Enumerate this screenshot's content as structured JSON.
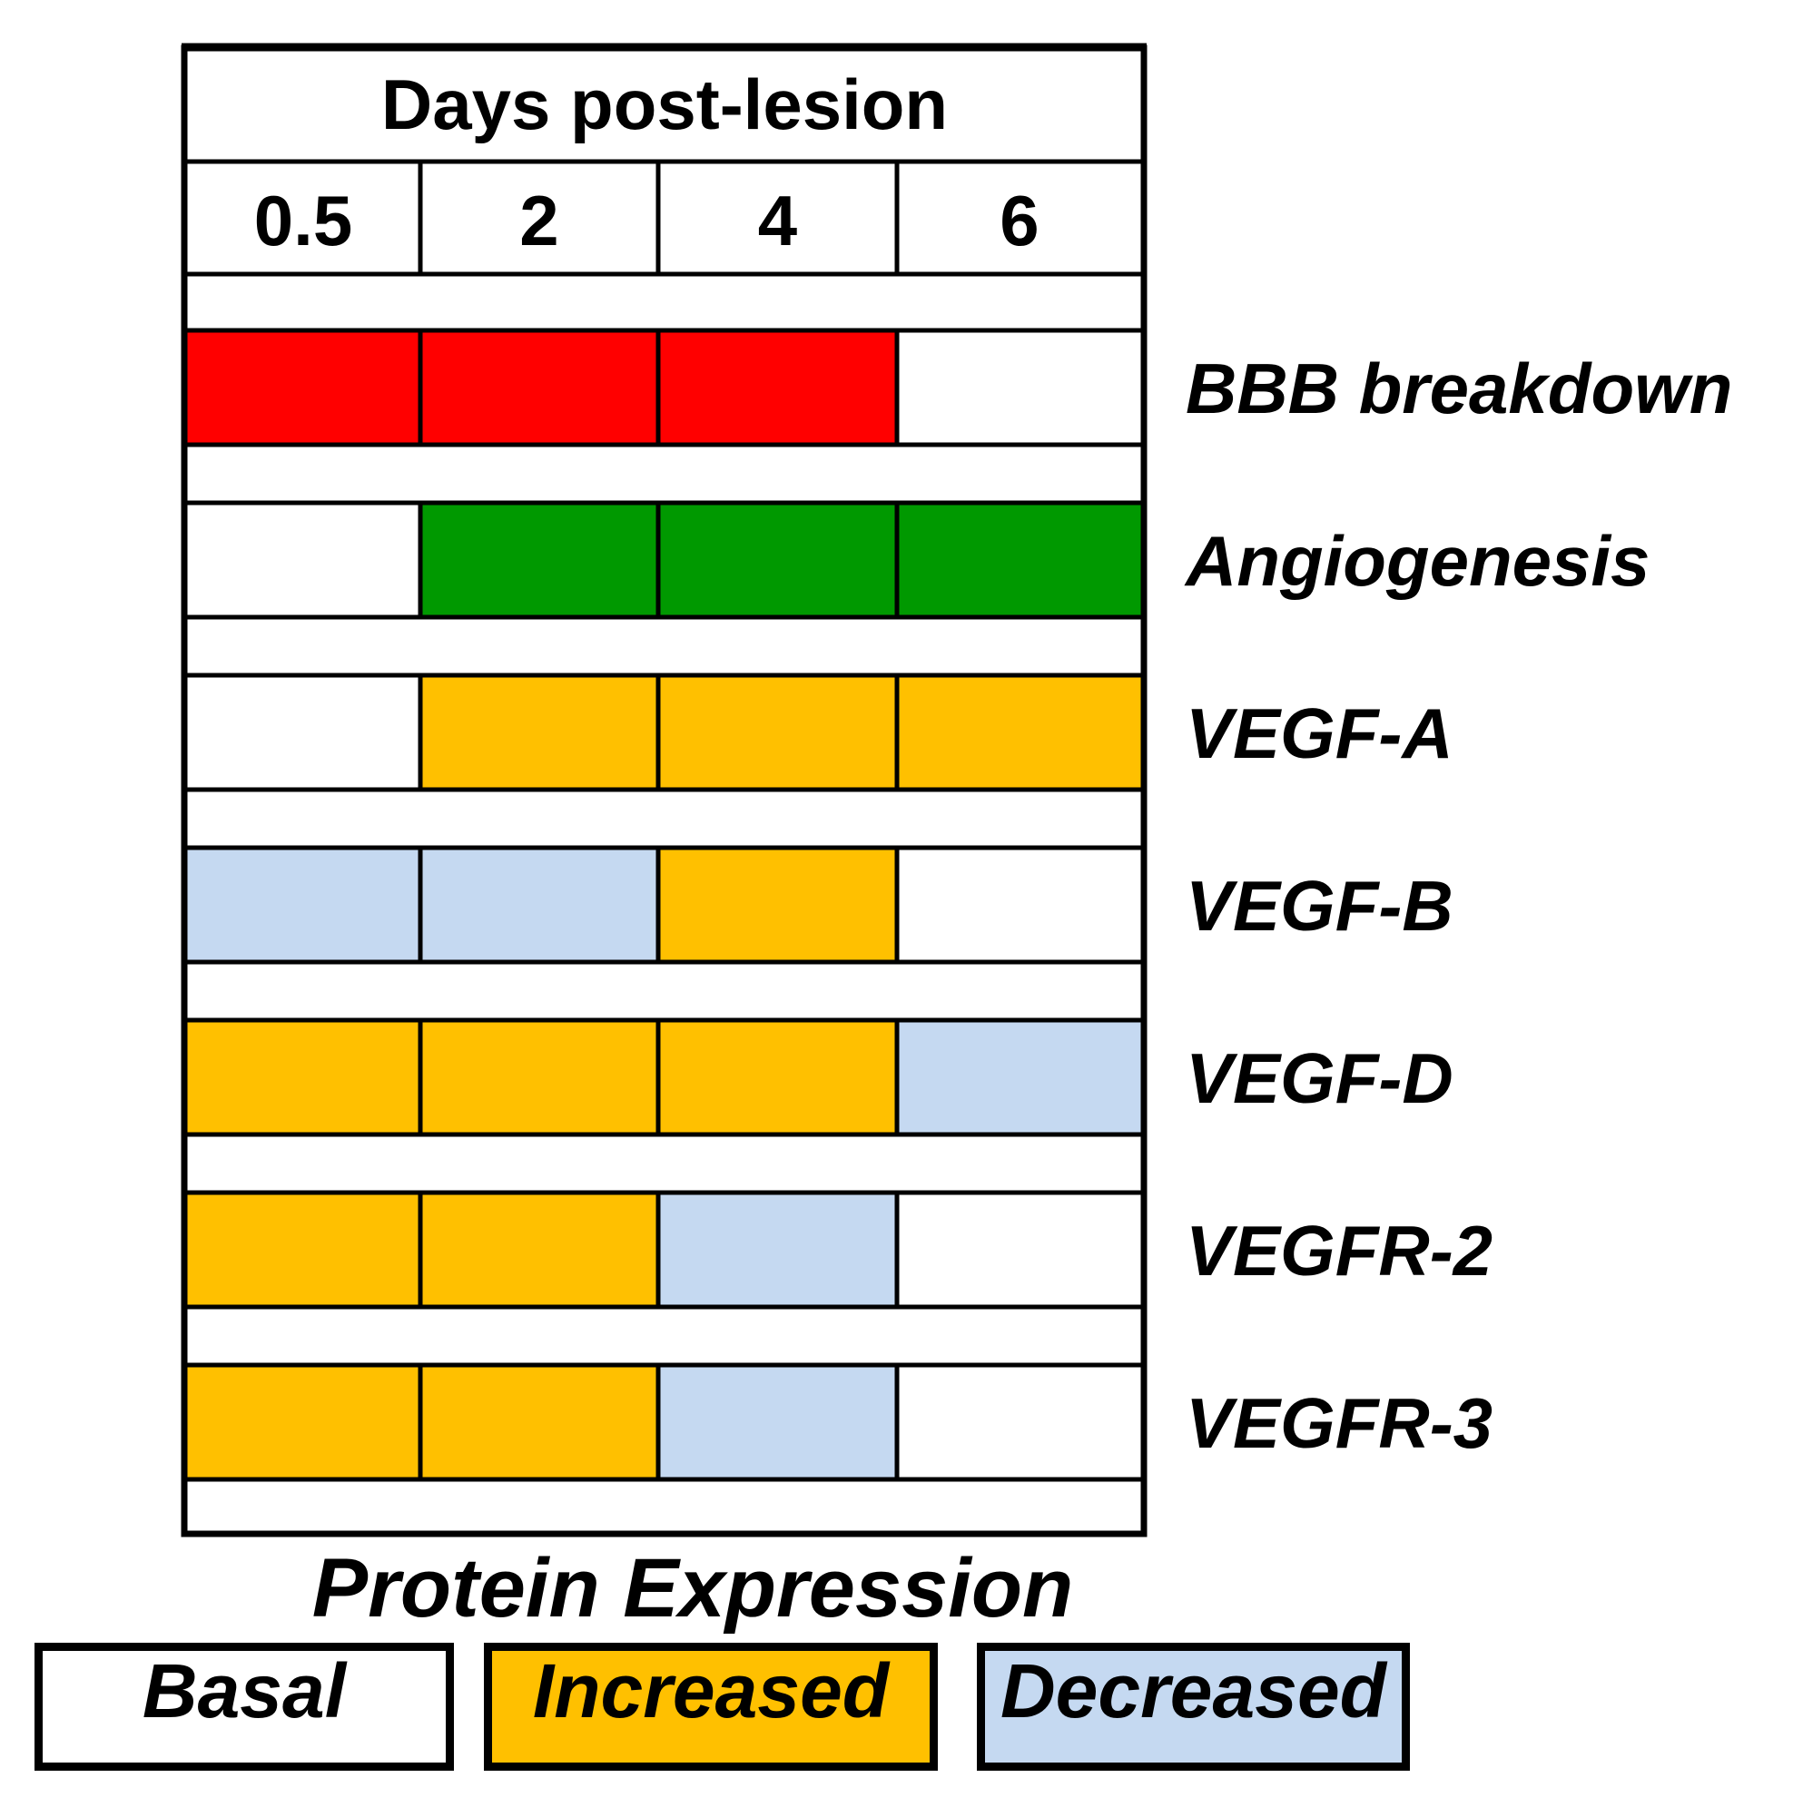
{
  "header": "Days post-lesion",
  "days": [
    "0.5",
    "2",
    "4",
    "6"
  ],
  "rows": [
    {
      "label": "BBB breakdown",
      "cells": [
        "bbb",
        "bbb",
        "bbb",
        "basal"
      ]
    },
    {
      "label": "Angiogenesis",
      "cells": [
        "basal",
        "angio",
        "angio",
        "angio"
      ]
    },
    {
      "label": "VEGF-A",
      "cells": [
        "basal",
        "increased",
        "increased",
        "increased"
      ]
    },
    {
      "label": "VEGF-B",
      "cells": [
        "decreased",
        "decreased",
        "increased",
        "basal"
      ]
    },
    {
      "label": "VEGF-D",
      "cells": [
        "increased",
        "increased",
        "increased",
        "decreased"
      ]
    },
    {
      "label": "VEGFR-2",
      "cells": [
        "increased",
        "increased",
        "decreased",
        "basal"
      ]
    },
    {
      "label": "VEGFR-3",
      "cells": [
        "increased",
        "increased",
        "decreased",
        "basal"
      ]
    }
  ],
  "colors": {
    "basal": "#ffffff",
    "increased": "#ffc000",
    "decreased": "#c5d9f1",
    "bbb": "#ff0000",
    "angio": "#009900"
  },
  "legend": {
    "title": "Protein Expression",
    "items": [
      {
        "key": "basal",
        "label": "Basal"
      },
      {
        "key": "increased",
        "label": "Increased"
      },
      {
        "key": "decreased",
        "label": "Decreased"
      }
    ]
  }
}
